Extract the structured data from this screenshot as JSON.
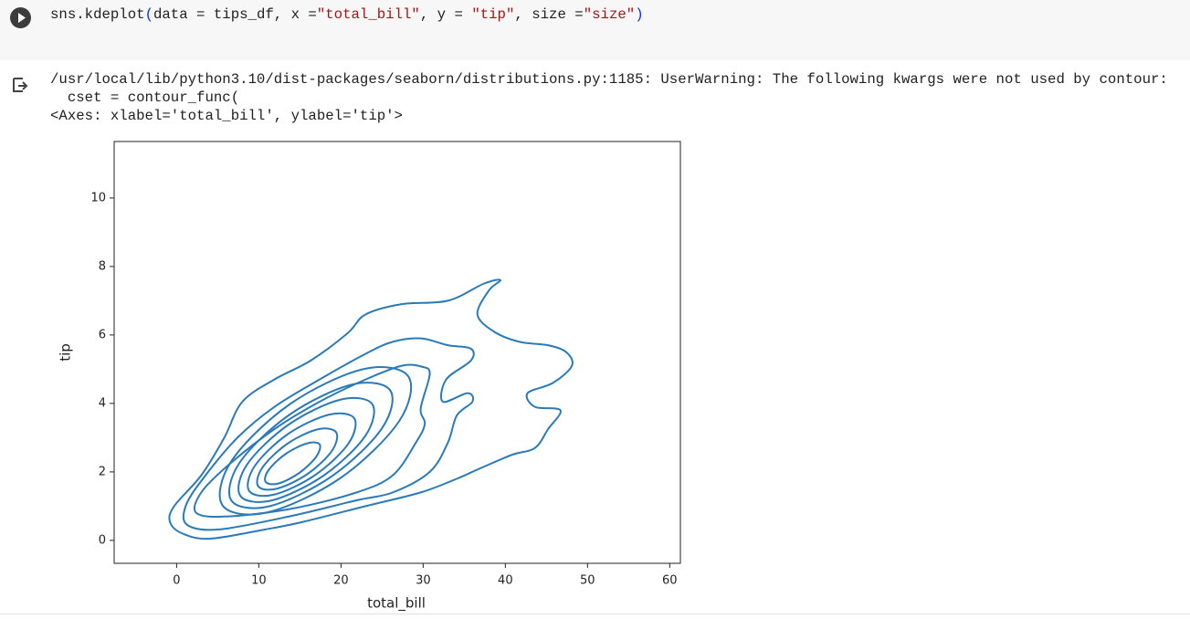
{
  "code_cell": {
    "tokens": [
      "sns.kdeplot",
      "(",
      "data = tips_df, x =",
      "\"total_bill\"",
      ", y = ",
      "\"tip\"",
      ", size =",
      "\"size\"",
      ")"
    ]
  },
  "output": {
    "lines": [
      "/usr/local/lib/python3.10/dist-packages/seaborn/distributions.py:1185: UserWarning: The following kwargs were not used by contour:",
      "  cset = contour_func(",
      "<Axes: xlabel='total_bill', ylabel='tip'>"
    ]
  },
  "chart_data": {
    "type": "kde",
    "xlabel": "total_bill",
    "ylabel": "tip",
    "color": "#2a7ab9",
    "xlim": [
      -7.6,
      61.3
    ],
    "ylim": [
      -0.67,
      11.65
    ],
    "xticks": [
      0,
      10,
      20,
      30,
      40,
      50,
      60
    ],
    "yticks": [
      0,
      2,
      4,
      6,
      8,
      10
    ],
    "contours": [
      {
        "x": [
          -0.8,
          0.8,
          4.1,
          10.8,
          15.2,
          23,
          29.7,
          34.1,
          36.9,
          40.8,
          43.6,
          45.2,
          46.7,
          43.6,
          42.7,
          45.8,
          48.1,
          47.4,
          45.2,
          41.7,
          38.6,
          36.6,
          38,
          39.4,
          37.4,
          33,
          27.4,
          23,
          20.8,
          16.3,
          11.9,
          8,
          5.8,
          3.0,
          -0.3
        ],
        "y": [
          0.53,
          0.19,
          0.05,
          0.32,
          0.53,
          1.0,
          1.4,
          1.8,
          2.1,
          2.5,
          2.7,
          3.25,
          3.8,
          3.9,
          4.3,
          4.6,
          5.1,
          5.5,
          5.7,
          5.8,
          6.1,
          6.6,
          7.3,
          7.6,
          7.5,
          7.0,
          6.9,
          6.6,
          6.05,
          5.25,
          4.7,
          4.05,
          3.0,
          1.9,
          1.0
        ]
      },
      {
        "x": [
          1.3,
          5.2,
          14.1,
          21.9,
          26.3,
          30.8,
          33,
          34.1,
          36,
          35.4,
          32.4,
          32.8,
          35.8,
          35.8,
          33,
          29.7,
          26.3,
          23,
          17.4,
          11.9,
          7.4,
          3.2,
          1.1
        ],
        "y": [
          0.45,
          0.32,
          0.72,
          1.17,
          1.4,
          2.0,
          2.85,
          3.65,
          4.05,
          4.3,
          4.05,
          4.7,
          5.25,
          5.6,
          5.7,
          5.9,
          5.8,
          5.45,
          4.7,
          3.9,
          3.0,
          1.8,
          1.0
        ]
      },
      {
        "x": [
          2.4,
          6.3,
          14.1,
          21.9,
          26.3,
          29.1,
          30.2,
          29.7,
          30.8,
          29.9,
          27.4,
          23,
          17.4,
          11.9,
          6.3,
          3
        ],
        "y": [
          0.8,
          0.7,
          0.93,
          1.4,
          1.9,
          2.85,
          3.4,
          3.85,
          4.85,
          5.07,
          5.1,
          4.7,
          4.05,
          3.25,
          2.2,
          1.4
        ]
      },
      {
        "x": [
          28.19,
          27.07,
          19.99,
          11.09,
          5.59,
          6.71,
          13.79,
          22.69
        ],
        "y": [
          4.79,
          3.48,
          1.83,
          0.82,
          1.02,
          2.33,
          3.98,
          5.0
        ]
      },
      {
        "x": [
          25.99,
          25.0,
          18.93,
          11.34,
          6.68,
          7.67,
          13.73,
          21.32
        ],
        "y": [
          4.38,
          3.28,
          1.88,
          1.0,
          1.16,
          2.27,
          3.67,
          4.55
        ]
      },
      {
        "x": [
          23.8,
          22.98,
          17.93,
          11.63,
          7.76,
          8.58,
          13.62,
          19.92
        ],
        "y": [
          3.98,
          3.06,
          1.9,
          1.17,
          1.3,
          2.22,
          3.38,
          4.11
        ]
      },
      {
        "x": [
          21.6,
          20.94,
          16.93,
          11.92,
          8.84,
          9.5,
          13.51,
          18.52
        ],
        "y": [
          3.57,
          2.84,
          1.92,
          1.34,
          1.44,
          2.17,
          3.1,
          3.67
        ]
      },
      {
        "x": [
          19.4,
          18.91,
          15.93,
          12.21,
          9.93,
          10.42,
          13.4,
          17.12
        ],
        "y": [
          3.16,
          2.62,
          1.94,
          1.51,
          1.58,
          2.12,
          2.81,
          3.24
        ]
      },
      {
        "x": [
          17.39,
          17.01,
          14.93,
          12.38,
          10.83,
          11.21,
          13.29,
          15.84
        ],
        "y": [
          2.81,
          2.45,
          1.97,
          1.66,
          1.71,
          2.06,
          2.53,
          2.83
        ]
      }
    ]
  }
}
